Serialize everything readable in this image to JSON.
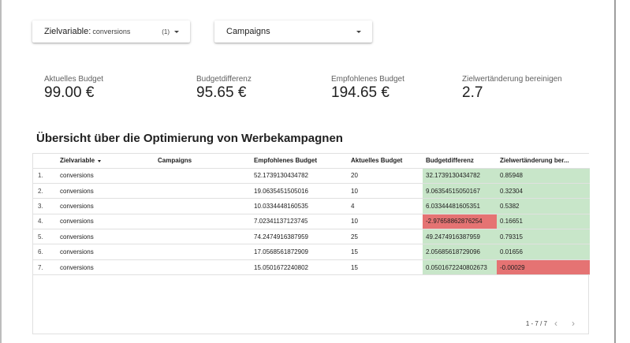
{
  "filters": {
    "target": {
      "label": "Zielvariable:",
      "value": "conversions",
      "count": "(1)"
    },
    "campaigns": {
      "label": "Campaigns"
    }
  },
  "kpis": [
    {
      "label": "Aktuelles Budget",
      "value": "99.00 €"
    },
    {
      "label": "Budgetdifferenz",
      "value": "95.65 €"
    },
    {
      "label": "Empfohlenes Budget",
      "value": "194.65 €"
    },
    {
      "label": "Zielwertänderung bereinigen",
      "value": "2.7"
    }
  ],
  "table": {
    "title": "Übersicht über die Optimierung von Werbekampagnen",
    "columns": [
      "",
      "Zielvariable",
      "Campaigns",
      "Empfohlenes Budget",
      "Aktuelles Budget",
      "Budgetdifferenz",
      "Zielwertänderung ber..."
    ],
    "rows": [
      {
        "idx": "1.",
        "target": "conversions",
        "campaign": "",
        "recommended": "52.1739130434782",
        "current": "20",
        "diff": "32.1739130434782",
        "change": "0.85948",
        "diff_color": "green",
        "change_color": "green"
      },
      {
        "idx": "2.",
        "target": "conversions",
        "campaign": "",
        "recommended": "19.0635451505016",
        "current": "10",
        "diff": "9.06354515050167",
        "change": "0.32304",
        "diff_color": "green",
        "change_color": "green"
      },
      {
        "idx": "3.",
        "target": "conversions",
        "campaign": "",
        "recommended": "10.0334448160535",
        "current": "4",
        "diff": "6.03344481605351",
        "change": "0.5382",
        "diff_color": "green",
        "change_color": "green"
      },
      {
        "idx": "4.",
        "target": "conversions",
        "campaign": "",
        "recommended": "7.02341137123745",
        "current": "10",
        "diff": "-2.97658862876254",
        "change": "0.16651",
        "diff_color": "red",
        "change_color": "green"
      },
      {
        "idx": "5.",
        "target": "conversions",
        "campaign": "",
        "recommended": "74.2474916387959",
        "current": "25",
        "diff": "49.2474916387959",
        "change": "0.79315",
        "diff_color": "green",
        "change_color": "green"
      },
      {
        "idx": "6.",
        "target": "conversions",
        "campaign": "",
        "recommended": "17.0568561872909",
        "current": "15",
        "diff": "2.05685618729096",
        "change": "0.01656",
        "diff_color": "green",
        "change_color": "green"
      },
      {
        "idx": "7.",
        "target": "conversions",
        "campaign": "",
        "recommended": "15.0501672240802",
        "current": "15",
        "diff": "0.0501672240802673",
        "change": "-0.00029",
        "diff_color": "green",
        "change_color": "red"
      }
    ]
  },
  "pager": {
    "range": "1 - 7 / 7",
    "prev_icon": "chevron-left-icon",
    "next_icon": "chevron-right-icon"
  },
  "colors": {
    "positive": "#c8e6c9",
    "negative": "#e57373"
  }
}
